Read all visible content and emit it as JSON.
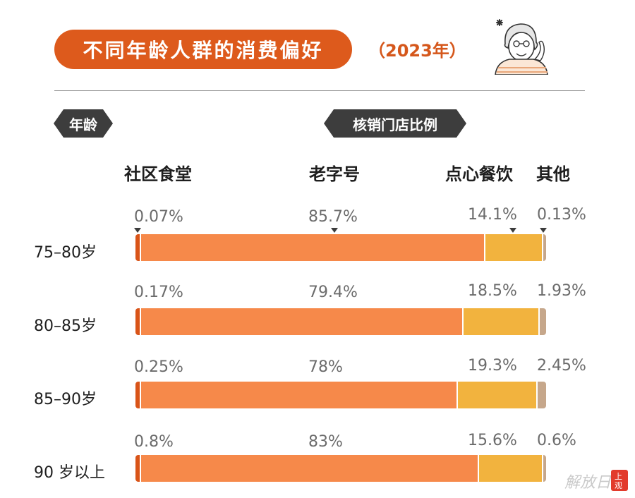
{
  "title": "不同年龄人群的消费偏好",
  "subtitle": "（2023年）",
  "labels": {
    "age": "年龄",
    "ratio": "核销门店比例"
  },
  "colors": {
    "title_bg": "#dd5a1c",
    "community": "#d95418",
    "old_brand": "#f6894a",
    "dim_sum": "#f2b33e",
    "other": "#c6a78b"
  },
  "chart_data": {
    "type": "bar",
    "stacked": true,
    "orientation": "horizontal",
    "categories": [
      "75–80岁",
      "80–85岁",
      "85–90岁",
      "90 岁以上"
    ],
    "series": [
      {
        "name": "社区食堂",
        "values": [
          0.07,
          0.17,
          0.25,
          0.8
        ],
        "labels": [
          "0.07%",
          "0.17%",
          "0.25%",
          "0.8%"
        ]
      },
      {
        "name": "老字号",
        "values": [
          85.7,
          79.4,
          78,
          83
        ],
        "labels": [
          "85.7%",
          "79.4%",
          "78%",
          "83%"
        ]
      },
      {
        "name": "点心餐饮",
        "values": [
          14.1,
          18.5,
          19.3,
          15.6
        ],
        "labels": [
          "14.1%",
          "18.5%",
          "19.3%",
          "15.6%"
        ]
      },
      {
        "name": "其他",
        "values": [
          0.13,
          1.93,
          2.45,
          0.6
        ],
        "labels": [
          "0.13%",
          "1.93%",
          "2.45%",
          "0.6%"
        ]
      }
    ],
    "unit": "%",
    "xlim": [
      0,
      100
    ]
  },
  "watermark": "解放日报 上观"
}
